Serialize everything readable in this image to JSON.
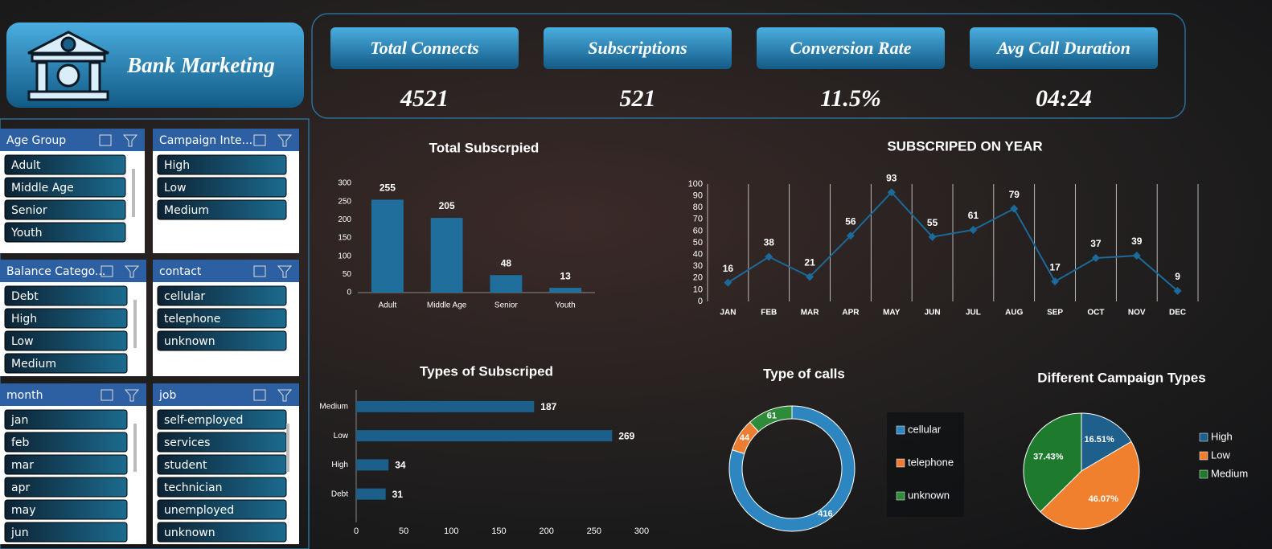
{
  "header": {
    "title": "Bank Marketing"
  },
  "kpis": [
    {
      "label": "Total Connects",
      "value": "4521"
    },
    {
      "label": "Subscriptions",
      "value": "521"
    },
    {
      "label": "Conversion Rate",
      "value": "11.5%"
    },
    {
      "label": "Avg Call Duration",
      "value": "04:24"
    }
  ],
  "slicers": [
    {
      "title": "Age Group",
      "items": [
        "Adult",
        "Middle Age",
        "Senior",
        "Youth"
      ]
    },
    {
      "title": "Campaign Inte...",
      "items": [
        "High",
        "Low",
        "Medium"
      ]
    },
    {
      "title": "Balance Catego...",
      "items": [
        "Debt",
        "High",
        "Low",
        "Medium"
      ]
    },
    {
      "title": "contact",
      "items": [
        "cellular",
        "telephone",
        "unknown"
      ]
    },
    {
      "title": "month",
      "items": [
        "jan",
        "feb",
        "mar",
        "apr",
        "may",
        "jun"
      ]
    },
    {
      "title": "job",
      "items": [
        "self-employed",
        "services",
        "student",
        "technician",
        "unemployed",
        "unknown"
      ]
    }
  ],
  "chart_data": [
    {
      "type": "bar",
      "title": "Total Subscrpied",
      "categories": [
        "Adult",
        "Middle Age",
        "Senior",
        "Youth"
      ],
      "values": [
        255,
        205,
        48,
        13
      ],
      "color": "#1f6e9c",
      "ylim": [
        0,
        300
      ],
      "yticks": [
        0,
        50,
        100,
        150,
        200,
        250,
        300
      ]
    },
    {
      "type": "line",
      "title": "SUBSCRIPED ON YEAR",
      "categories": [
        "JAN",
        "FEB",
        "MAR",
        "APR",
        "MAY",
        "JUN",
        "JUL",
        "AUG",
        "SEP",
        "OCT",
        "NOV",
        "DEC"
      ],
      "values": [
        16,
        38,
        21,
        56,
        93,
        55,
        61,
        79,
        17,
        37,
        39,
        9
      ],
      "color": "#1b6a99",
      "ylim": [
        0,
        100
      ],
      "yticks": [
        0,
        10,
        20,
        30,
        40,
        50,
        60,
        70,
        80,
        90,
        100
      ]
    },
    {
      "type": "barh",
      "title": "Types of Subscriped",
      "categories": [
        "Medium",
        "Low",
        "High",
        "Debt"
      ],
      "values": [
        187,
        269,
        34,
        31
      ],
      "color": "#1b5f8a",
      "xlim": [
        0,
        300
      ],
      "xticks": [
        0,
        50,
        100,
        150,
        200,
        250,
        300
      ]
    },
    {
      "type": "donut",
      "title": "Type of calls",
      "categories": [
        "cellular",
        "telephone",
        "unknown"
      ],
      "values": [
        416,
        44,
        61
      ],
      "colors": [
        "#2e86c1",
        "#ed7d31",
        "#2e8b3a"
      ],
      "legend": "right"
    },
    {
      "type": "pie",
      "title": "Different Campaign Types",
      "categories": [
        "High",
        "Low",
        "Medium"
      ],
      "values": [
        16.51,
        46.07,
        37.43
      ],
      "value_labels": [
        "16.51%",
        "46.07%",
        "37.43%"
      ],
      "colors": [
        "#1f5f8b",
        "#f07f2e",
        "#1e7b2e"
      ],
      "legend": "right"
    }
  ]
}
